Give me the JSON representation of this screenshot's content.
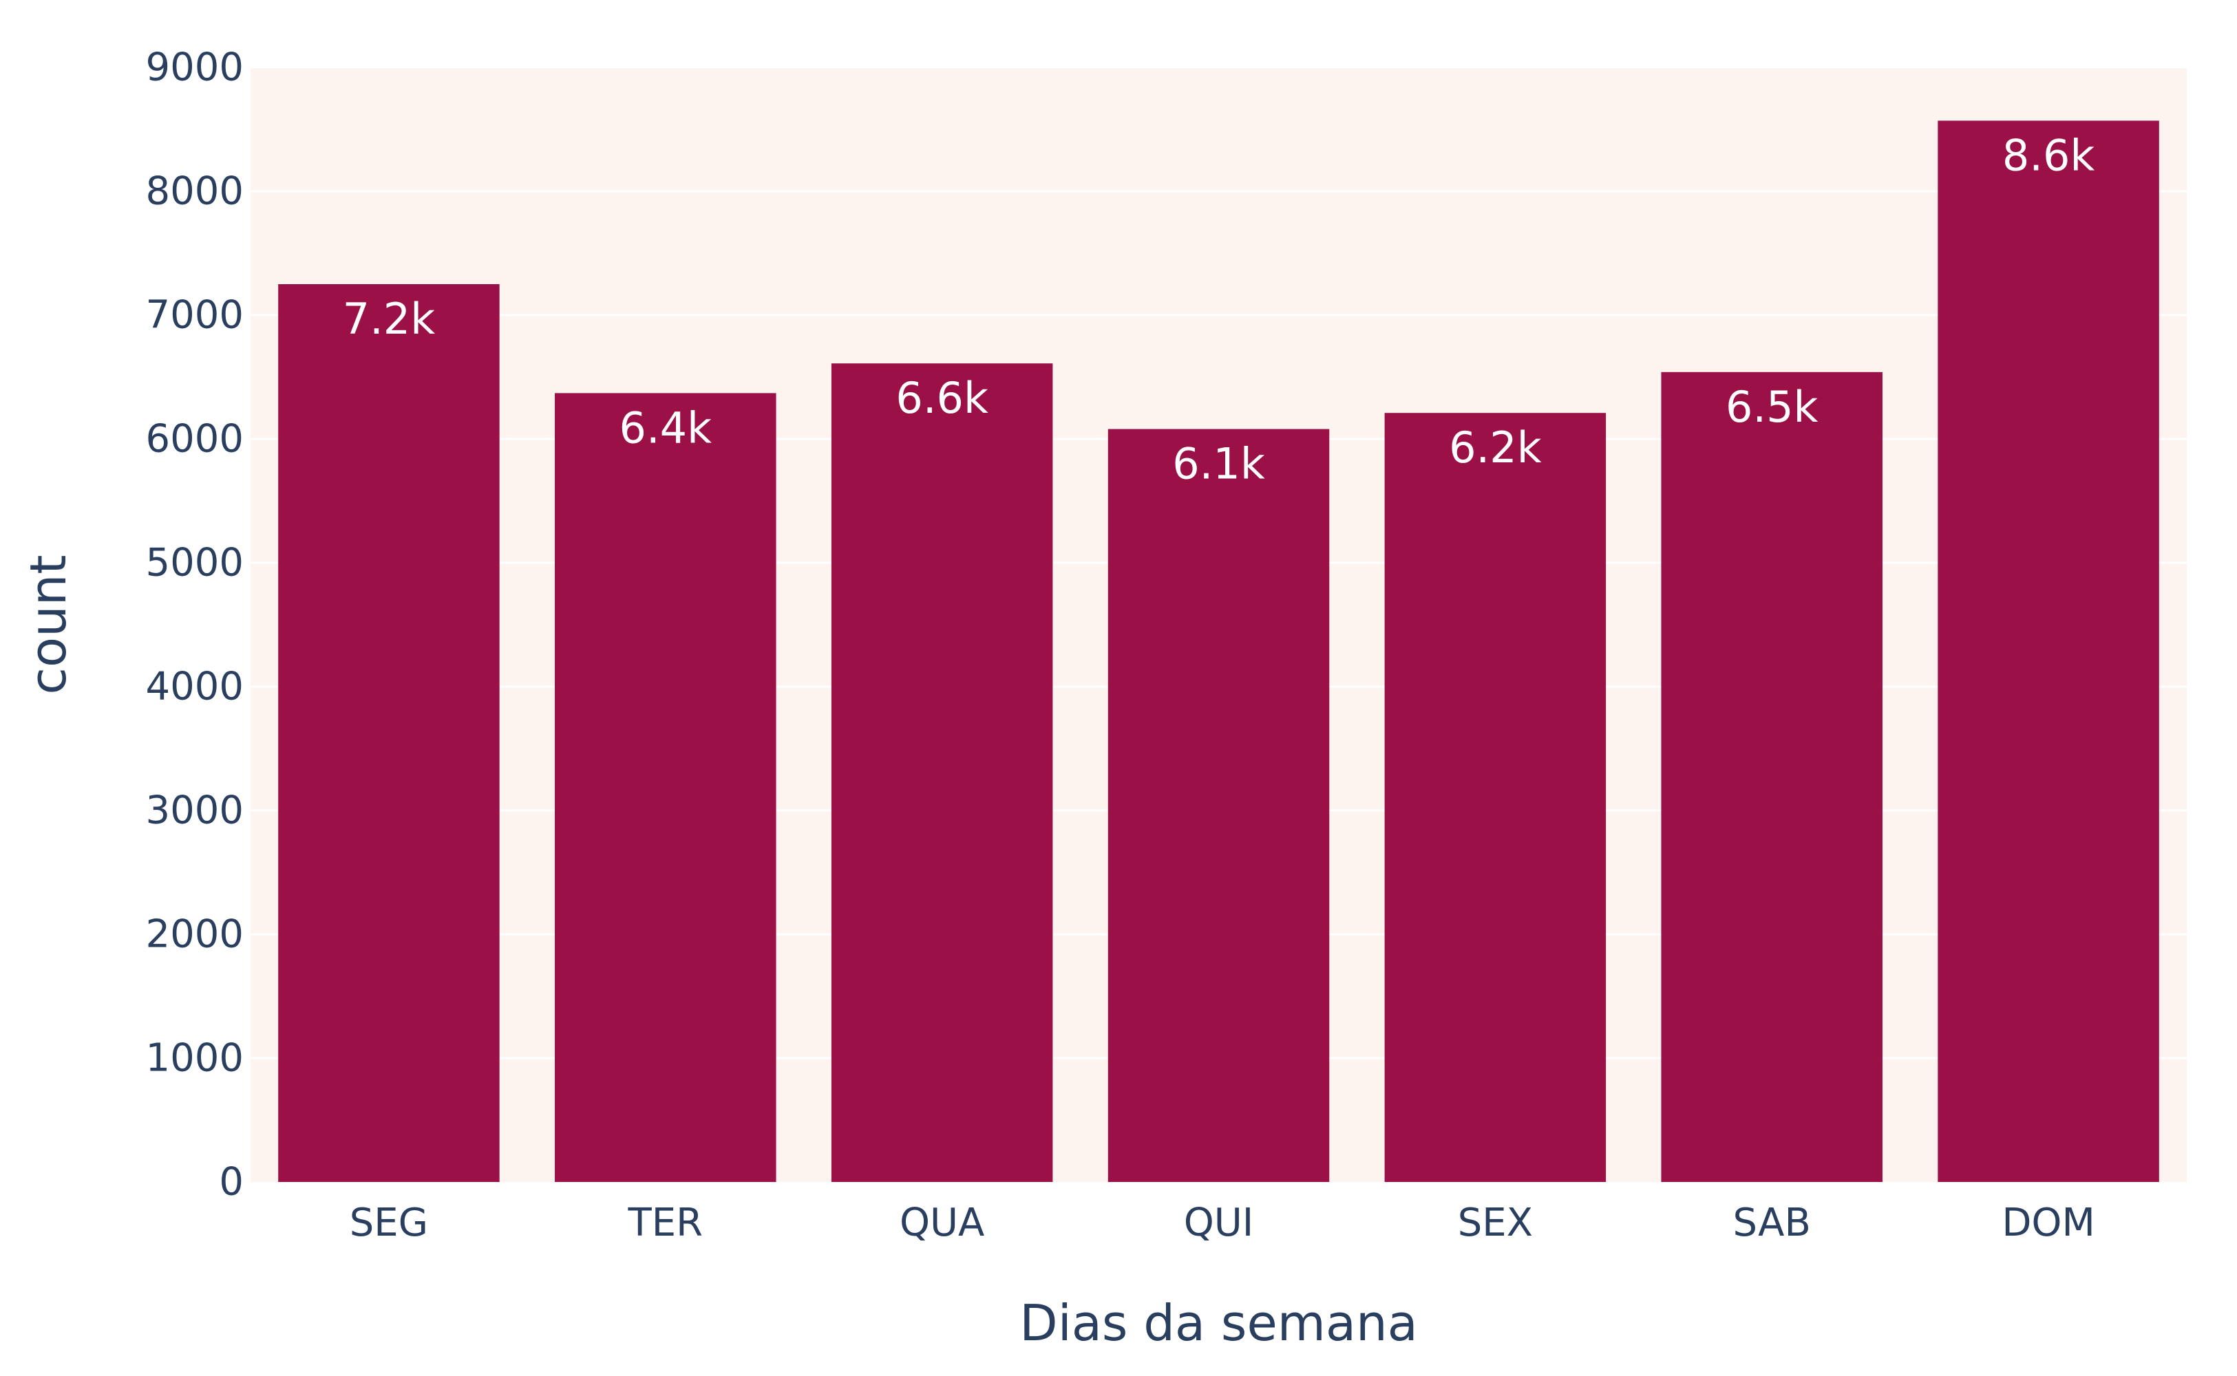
{
  "chart_data": {
    "type": "bar",
    "categories": [
      "SEG",
      "TER",
      "QUA",
      "QUI",
      "SEX",
      "SAB",
      "DOM"
    ],
    "values": [
      7250,
      6370,
      6610,
      6080,
      6210,
      6540,
      8570
    ],
    "data_labels": [
      "7.2k",
      "6.4k",
      "6.6k",
      "6.1k",
      "6.2k",
      "6.5k",
      "8.6k"
    ],
    "title": "",
    "xlabel": "Dias da semana",
    "ylabel": "count",
    "ylim": [
      0,
      9000
    ],
    "yticks": [
      0,
      1000,
      2000,
      3000,
      4000,
      5000,
      6000,
      7000,
      8000,
      9000
    ],
    "ytick_labels": [
      "0",
      "1000",
      "2000",
      "3000",
      "4000",
      "5000",
      "6000",
      "7000",
      "8000",
      "9000"
    ],
    "grid": true,
    "legend": "none",
    "colors": {
      "bar": "#9c1048",
      "plot_background": "#fdf3ef",
      "gridline": "#ffffff",
      "text": "#2a3f5f",
      "data_label": "#ffffff"
    }
  }
}
